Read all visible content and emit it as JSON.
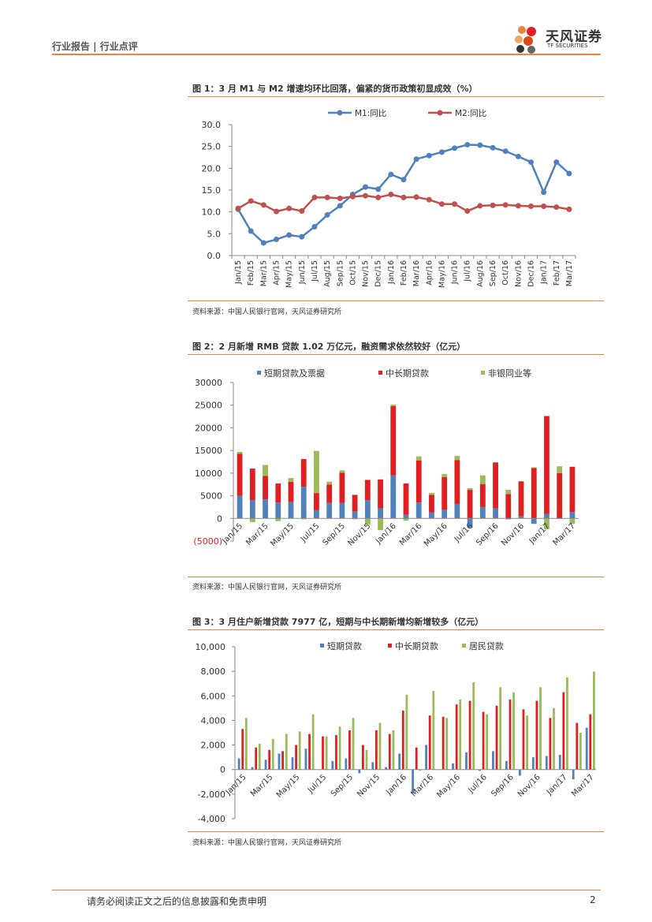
{
  "header": {
    "left": "行业报告 | 行业点评",
    "logo_name": "天风证券",
    "logo_sub": "TF SECURITIES"
  },
  "colors": {
    "accent": "#e8853a",
    "blue": "#4f81bd",
    "red": "#e02020",
    "green": "#9bbb59",
    "red_line": "#c0504d"
  },
  "figure1": {
    "title": "图 1：3 月 M1 与 M2 增速均环比回落，偏紧的货币政策初显成效（%）",
    "source": "资料来源：中国人民银行官网，天风证券研究所",
    "chart_data": {
      "type": "line",
      "categories": [
        "Jan/15",
        "Feb/15",
        "Mar/15",
        "Apr/15",
        "May/15",
        "Jun/15",
        "Jul/15",
        "Aug/15",
        "Sep/15",
        "Oct/15",
        "Nov/15",
        "Dec/15",
        "Jan/16",
        "Feb/16",
        "Mar/16",
        "Apr/16",
        "May/16",
        "Jun/16",
        "Jul/16",
        "Aug/16",
        "Sep/16",
        "Oct/16",
        "Nov/16",
        "Dec/16",
        "Jan/17",
        "Feb/17",
        "Mar/17"
      ],
      "tick_labels": [
        "Jan/15",
        "Feb/15",
        "Mar/15",
        "Apr/15",
        "May/15",
        "Jun/15",
        "Jul/15",
        "Aug/15",
        "Sep/15",
        "Oct/15",
        "Nov/15",
        "Dec/15",
        "Jan/16",
        "Feb/16",
        "Mar/16",
        "Apr/16",
        "May/16",
        "Jun/16",
        "Jul/16",
        "Aug/16",
        "Sep/16",
        "Oct/16",
        "Nov/16",
        "Dec/16",
        "Jan/17",
        "Feb/17",
        "Mar/17"
      ],
      "series": [
        {
          "name": "M1:同比",
          "values": [
            10.6,
            5.6,
            2.9,
            3.7,
            4.7,
            4.3,
            6.6,
            9.3,
            11.4,
            14.0,
            15.7,
            15.2,
            18.6,
            17.4,
            22.1,
            22.9,
            23.7,
            24.6,
            25.4,
            25.3,
            24.7,
            23.9,
            22.7,
            21.4,
            14.5,
            21.4,
            18.8
          ]
        },
        {
          "name": "M2:同比",
          "values": [
            10.8,
            12.5,
            11.6,
            10.1,
            10.8,
            10.2,
            13.3,
            13.3,
            13.1,
            13.5,
            13.7,
            13.3,
            14.0,
            13.3,
            13.4,
            12.8,
            11.8,
            11.8,
            10.2,
            11.4,
            11.5,
            11.6,
            11.4,
            11.3,
            11.3,
            11.1,
            10.6
          ]
        }
      ],
      "yticks": [
        "30.0",
        "25.0",
        "20.0",
        "15.0",
        "10.0",
        "5.0",
        "0.0"
      ],
      "ylim": [
        0,
        30
      ]
    }
  },
  "figure2": {
    "title": "图 2：2 月新增 RMB 贷款 1.02 万亿元，融资需求依然较好（亿元）",
    "source": "资料来源：中国人民银行官网，天风证券研究所",
    "chart_data": {
      "type": "bar",
      "stacked": true,
      "categories": [
        "Jan/15",
        "Feb/15",
        "Mar/15",
        "Apr/15",
        "May/15",
        "Jun/15",
        "Jul/15",
        "Aug/15",
        "Sep/15",
        "Oct/15",
        "Nov/15",
        "Dec/15",
        "Jan/16",
        "Feb/16",
        "Mar/16",
        "Apr/16",
        "May/16",
        "Jun/16",
        "Jul/16",
        "Aug/16",
        "Sep/16",
        "Oct/16",
        "Nov/16",
        "Dec/16",
        "Jan/17",
        "Feb/17",
        "Mar/17"
      ],
      "tick_labels": [
        "Jan/15",
        "Mar/15",
        "May/15",
        "Jul/15",
        "Sep/15",
        "Nov/15",
        "Jan/16",
        "Mar/16",
        "May/16",
        "Jul/16",
        "Sep/16",
        "Nov/16",
        "Jan/17",
        "Mar/17"
      ],
      "series": [
        {
          "name": "短期贷款及票据",
          "values": [
            5000,
            4000,
            4200,
            3500,
            3600,
            7000,
            1800,
            3400,
            3400,
            1500,
            4000,
            2200,
            9500,
            800,
            3500,
            1300,
            1900,
            3200,
            -2000,
            2500,
            2200,
            -200,
            500,
            -1200,
            1000,
            -100,
            1400
          ]
        },
        {
          "name": "中长期贷款",
          "values": [
            9300,
            7000,
            5200,
            4200,
            4500,
            6100,
            3800,
            4100,
            6700,
            3700,
            4500,
            6400,
            15300,
            6900,
            9300,
            3900,
            7200,
            9700,
            6300,
            5100,
            10200,
            5400,
            7700,
            11100,
            21600,
            10000,
            10000
          ]
        },
        {
          "name": "非银同业等",
          "values": [
            400,
            -800,
            2400,
            -600,
            800,
            -200,
            9300,
            600,
            500,
            -200,
            -1400,
            -2600,
            300,
            -500,
            900,
            400,
            700,
            900,
            400,
            1900,
            0,
            900,
            0,
            200,
            -2400,
            1500,
            -1200
          ]
        }
      ],
      "yticks": [
        "30000",
        "25000",
        "20000",
        "15000",
        "10000",
        "5000",
        "0",
        "(5000)"
      ],
      "ylim": [
        -5000,
        30000
      ]
    }
  },
  "figure3": {
    "title": "图 3：3 月住户新增贷款 7977 亿，短期与中长期新增均新增较多（亿元）",
    "source": "资料来源：中国人民银行官网，天风证券研究所",
    "chart_data": {
      "type": "bar",
      "categories": [
        "Jan/15",
        "Feb/15",
        "Mar/15",
        "Apr/15",
        "May/15",
        "Jun/15",
        "Jul/15",
        "Aug/15",
        "Sep/15",
        "Oct/15",
        "Nov/15",
        "Dec/15",
        "Jan/16",
        "Feb/16",
        "Mar/16",
        "Apr/16",
        "May/16",
        "Jun/16",
        "Jul/16",
        "Aug/16",
        "Sep/16",
        "Oct/16",
        "Nov/16",
        "Dec/16",
        "Jan/17",
        "Feb/17",
        "Mar/17"
      ],
      "tick_labels": [
        "Jan/15",
        "Mar/15",
        "May/15",
        "Jul/15",
        "Sep/15",
        "Nov/15",
        "Jan/16",
        "Mar/16",
        "May/16",
        "Jul/16",
        "Sep/16",
        "Nov/16",
        "Jan/17",
        "Mar/17"
      ],
      "series": [
        {
          "name": "短期贷款",
          "values": [
            900,
            200,
            800,
            1300,
            1000,
            1700,
            0,
            700,
            900,
            -300,
            600,
            200,
            1300,
            -1900,
            2000,
            0,
            500,
            1400,
            -100,
            1500,
            700,
            -500,
            1000,
            1100,
            1200,
            -800,
            3400
          ]
        },
        {
          "name": "中长期贷款",
          "values": [
            3300,
            1800,
            1600,
            1500,
            2000,
            2900,
            2700,
            2800,
            3200,
            2000,
            3200,
            2900,
            4800,
            1800,
            4400,
            4300,
            5300,
            5600,
            4700,
            5200,
            5700,
            4900,
            5600,
            4200,
            6300,
            3800,
            4500
          ]
        },
        {
          "name": "居民贷款",
          "values": [
            4200,
            2100,
            2500,
            2900,
            3100,
            4500,
            2700,
            3500,
            4200,
            1600,
            3800,
            3200,
            6100,
            -100,
            6400,
            4200,
            5700,
            7100,
            4500,
            6700,
            6300,
            4400,
            6700,
            5000,
            7500,
            3000,
            7977
          ]
        }
      ],
      "yticks": [
        "10,000",
        "8,000",
        "6,000",
        "4,000",
        "2,000",
        "0",
        "-2,000",
        "-4,000"
      ],
      "ylim": [
        -4000,
        10000
      ]
    }
  },
  "footer": {
    "text": "请务必阅读正文之后的信息披露和免责申明",
    "page": "2"
  }
}
